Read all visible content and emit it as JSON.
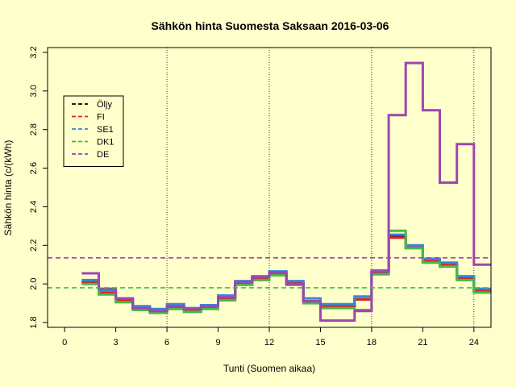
{
  "chart_data": {
    "type": "line",
    "title": "Sähkön hinta Suomesta Saksaan 2016-03-06",
    "xlabel": "Tunti (Suomen aikaa)",
    "ylabel": "Sähkön hinta (c/(kWh)",
    "xlim": [
      -1,
      25
    ],
    "ylim": [
      1.775,
      3.225
    ],
    "xticks": [
      0,
      3,
      6,
      9,
      12,
      15,
      18,
      21,
      24
    ],
    "yticks": [
      1.8,
      2.0,
      2.2,
      2.4,
      2.6,
      2.8,
      3.0,
      3.2
    ],
    "vlines": [
      6,
      12,
      18,
      24
    ],
    "step_hours": [
      1,
      2,
      3,
      4,
      5,
      6,
      7,
      8,
      9,
      10,
      11,
      12,
      13,
      14,
      15,
      16,
      17,
      18,
      19,
      20,
      21,
      22,
      23,
      24
    ],
    "step_end": 25,
    "legend_position": "top-left",
    "series": [
      {
        "name": "Öljy",
        "color": "#000000",
        "values": [
          2.01,
          1.955,
          1.915,
          1.875,
          1.86,
          1.88,
          1.865,
          1.88,
          1.925,
          2.005,
          2.03,
          2.055,
          2.005,
          1.91,
          1.885,
          1.885,
          1.92,
          2.06,
          2.245,
          2.19,
          2.12,
          2.1,
          2.03,
          1.965
        ]
      },
      {
        "name": "FI",
        "color": "#dd2222",
        "values": [
          2.01,
          1.955,
          1.915,
          1.875,
          1.86,
          1.88,
          1.865,
          1.88,
          1.925,
          2.005,
          2.03,
          2.055,
          2.005,
          1.91,
          1.885,
          1.885,
          1.92,
          2.06,
          2.24,
          2.19,
          2.12,
          2.1,
          2.03,
          1.965
        ]
      },
      {
        "name": "SE1",
        "color": "#3388dd",
        "values": [
          2.02,
          1.965,
          1.925,
          1.885,
          1.87,
          1.895,
          1.875,
          1.89,
          1.94,
          2.015,
          2.04,
          2.065,
          2.015,
          1.925,
          1.895,
          1.895,
          1.935,
          2.07,
          2.255,
          2.2,
          2.13,
          2.11,
          2.04,
          1.975
        ]
      },
      {
        "name": "DK1",
        "color": "#44bb44",
        "values": [
          2.0,
          1.945,
          1.905,
          1.865,
          1.85,
          1.87,
          1.855,
          1.87,
          1.915,
          1.995,
          2.02,
          2.045,
          1.995,
          1.9,
          1.875,
          1.875,
          1.865,
          2.05,
          2.275,
          2.185,
          2.11,
          2.09,
          2.02,
          1.955
        ]
      },
      {
        "name": "DE",
        "color": "#a045b0",
        "values": [
          2.055,
          1.975,
          1.925,
          1.875,
          1.86,
          1.885,
          1.87,
          1.885,
          1.93,
          2.01,
          2.035,
          2.06,
          2.0,
          1.91,
          1.81,
          1.81,
          1.86,
          2.065,
          2.875,
          3.145,
          2.9,
          2.525,
          2.725,
          2.1
        ]
      }
    ],
    "hlines": [
      {
        "name": "DK1",
        "value": 1.98,
        "color": "#44bb44"
      },
      {
        "name": "DE",
        "value": 2.135,
        "color": "#a045b0"
      }
    ]
  }
}
